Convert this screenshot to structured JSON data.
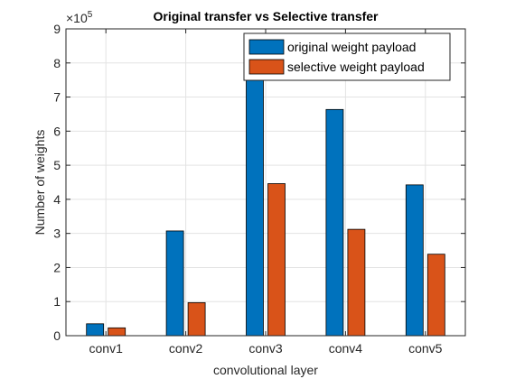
{
  "chart_data": {
    "type": "bar",
    "title": "Original transfer vs Selective transfer",
    "xlabel": "convolutional layer",
    "ylabel": "Number of weights",
    "exponent_label": "×10",
    "exponent_power": "5",
    "categories": [
      "conv1",
      "conv2",
      "conv3",
      "conv4",
      "conv5"
    ],
    "ylim": [
      0,
      900000
    ],
    "ytick_values": [
      0,
      100000,
      200000,
      300000,
      400000,
      500000,
      600000,
      700000,
      800000,
      900000
    ],
    "ytick_labels": [
      "0",
      "1",
      "2",
      "3",
      "4",
      "5",
      "6",
      "7",
      "8",
      "9"
    ],
    "grid": true,
    "legend_position": "top-right",
    "series": [
      {
        "name": "original weight payload",
        "color": "#0072BD",
        "values": [
          34848,
          307200,
          884736,
          663552,
          442368
        ]
      },
      {
        "name": "selective weight payload",
        "color": "#D95319",
        "values": [
          23000,
          97000,
          446000,
          312000,
          239000
        ]
      }
    ]
  }
}
